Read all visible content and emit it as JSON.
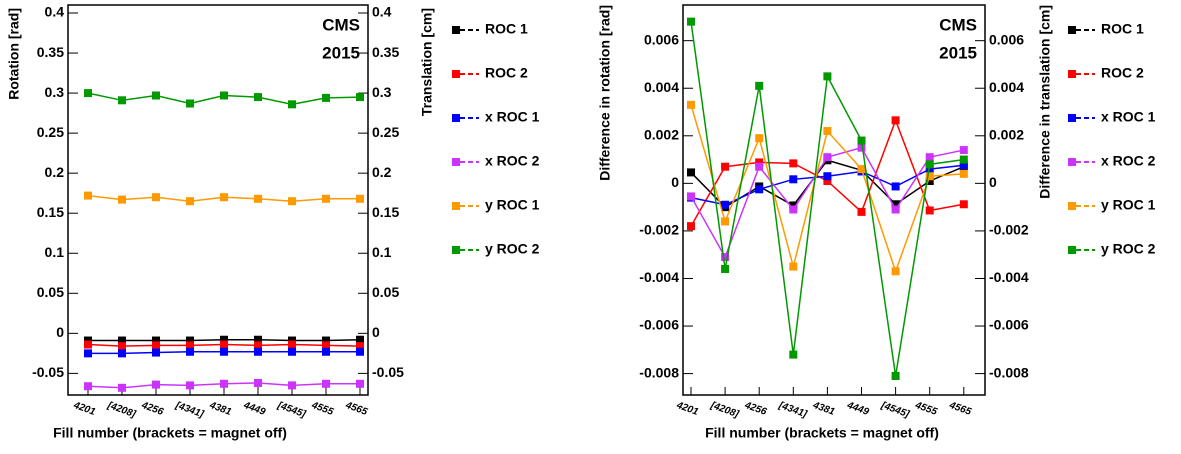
{
  "chart_data": [
    {
      "type": "line",
      "y_label": "Rotation [rad]",
      "y2_label": "Translation [cm]",
      "x_label": "Fill number (brackets = magnet off)",
      "annotations": [
        "CMS",
        "2015"
      ],
      "categories": [
        "4201",
        "[4208]",
        "4256",
        "[4341]",
        "4381",
        "4449",
        "[4545]",
        "4555",
        "4565"
      ],
      "ylim": [
        -0.077,
        0.41
      ],
      "yticks": [
        -0.05,
        0,
        0.05,
        0.1,
        0.15,
        0.2,
        0.25,
        0.3,
        0.35,
        0.4
      ],
      "y2lim": [
        -0.077,
        0.41
      ],
      "y2ticks": [
        -0.05,
        0,
        0.05,
        0.1,
        0.15,
        0.2,
        0.25,
        0.3,
        0.35,
        0.4
      ],
      "series": [
        {
          "name": "ROC 1",
          "color": "#000000",
          "values": [
            -0.009,
            -0.009,
            -0.009,
            -0.009,
            -0.008,
            -0.008,
            -0.009,
            -0.009,
            -0.008
          ]
        },
        {
          "name": "ROC 2",
          "color": "#ff0000",
          "values": [
            -0.014,
            -0.016,
            -0.015,
            -0.015,
            -0.014,
            -0.015,
            -0.014,
            -0.015,
            -0.016
          ]
        },
        {
          "name": "x ROC 1",
          "color": "#0000ff",
          "axis": "y2",
          "values": [
            -0.025,
            -0.025,
            -0.024,
            -0.023,
            -0.023,
            -0.023,
            -0.023,
            -0.023,
            -0.023
          ]
        },
        {
          "name": "x ROC 2",
          "color": "#cc33ff",
          "axis": "y2",
          "values": [
            -0.066,
            -0.068,
            -0.064,
            -0.065,
            -0.063,
            -0.062,
            -0.065,
            -0.063,
            -0.063
          ]
        },
        {
          "name": "y ROC 1",
          "color": "#ff9900",
          "axis": "y2",
          "values": [
            0.172,
            0.167,
            0.17,
            0.165,
            0.17,
            0.168,
            0.165,
            0.168,
            0.168
          ]
        },
        {
          "name": "y ROC 2",
          "color": "#009900",
          "axis": "y2",
          "values": [
            0.3,
            0.291,
            0.297,
            0.287,
            0.297,
            0.295,
            0.286,
            0.294,
            0.295
          ]
        }
      ]
    },
    {
      "type": "line",
      "y_label": "Difference in rotation [rad]",
      "y2_label": "Difference in translation [cm]",
      "x_label": "Fill number (brackets = magnet off)",
      "annotations": [
        "CMS",
        "2015"
      ],
      "categories": [
        "4201",
        "[4208]",
        "4256",
        "[4341]",
        "4381",
        "4449",
        "[4545]",
        "4555",
        "4565"
      ],
      "ylim": [
        -0.0089,
        0.0075
      ],
      "yticks": [
        -0.008,
        -0.006,
        -0.004,
        -0.002,
        0,
        0.002,
        0.004,
        0.006
      ],
      "y2lim": [
        -0.0089,
        0.0075
      ],
      "y2ticks": [
        -0.008,
        -0.006,
        -0.004,
        -0.002,
        0,
        0.002,
        0.004,
        0.006
      ],
      "series": [
        {
          "name": "ROC 1",
          "color": "#000000",
          "values": [
            0.00046,
            -0.001,
            -0.00013,
            -0.00093,
            0.00097,
            0.00055,
            -0.00088,
            0.0001,
            0.0007
          ]
        },
        {
          "name": "ROC 2",
          "color": "#ff0000",
          "values": [
            -0.0018,
            0.0007,
            0.00088,
            0.00084,
            0.0001,
            -0.0012,
            0.00265,
            -0.00114,
            -0.00088
          ]
        },
        {
          "name": "x ROC 1",
          "color": "#0000ff",
          "axis": "y2",
          "values": [
            -0.0006,
            -0.0009,
            -0.00025,
            0.00017,
            0.0003,
            0.0005,
            -0.00013,
            0.0006,
            0.00076
          ]
        },
        {
          "name": "x ROC 2",
          "color": "#cc33ff",
          "axis": "y2",
          "values": [
            -0.00055,
            -0.0031,
            0.0007,
            -0.0011,
            0.0011,
            0.0015,
            -0.0011,
            0.0011,
            0.0014
          ]
        },
        {
          "name": "y ROC 1",
          "color": "#ff9900",
          "axis": "y2",
          "values": [
            0.0033,
            -0.0016,
            0.0019,
            -0.0035,
            0.0022,
            0.0006,
            -0.0037,
            0.0003,
            0.0004
          ]
        },
        {
          "name": "y ROC 2",
          "color": "#009900",
          "axis": "y2",
          "values": [
            0.0068,
            -0.0036,
            0.0041,
            -0.0072,
            0.0045,
            0.0018,
            -0.0081,
            0.0008,
            0.001
          ]
        }
      ]
    }
  ]
}
